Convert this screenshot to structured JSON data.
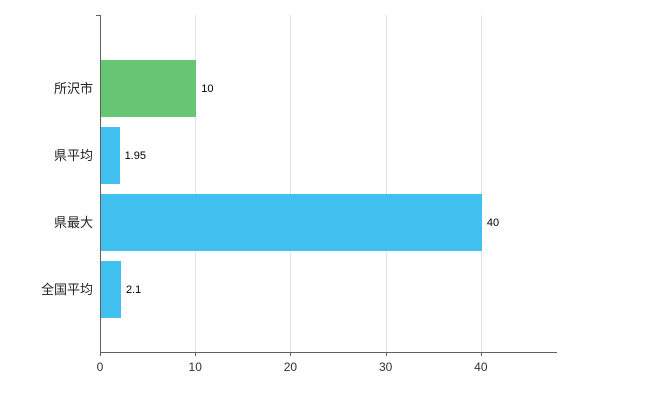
{
  "chart_data": {
    "type": "bar",
    "orientation": "horizontal",
    "title": "",
    "xlabel": "",
    "ylabel": "",
    "categories": [
      "所沢市",
      "県平均",
      "県最大",
      "全国平均"
    ],
    "values": [
      10,
      1.95,
      40,
      2.1
    ],
    "value_labels": [
      "10",
      "1.95",
      "40",
      "2.1"
    ],
    "bar_colors": [
      "#66c673",
      "#41c1f0",
      "#41c1f0",
      "#41c1f0"
    ],
    "xlim": [
      0,
      48
    ],
    "xticks": [
      0,
      10,
      20,
      30,
      40
    ],
    "xtick_labels": [
      "0",
      "10",
      "20",
      "30",
      "40"
    ],
    "grid": true,
    "legend": "none",
    "colors": {
      "grid": "#e2e2e2",
      "axis": "#606060",
      "tick_label": "#333333",
      "category_label": "#222222",
      "value_label": "#000000",
      "background": "#ffffff"
    }
  }
}
